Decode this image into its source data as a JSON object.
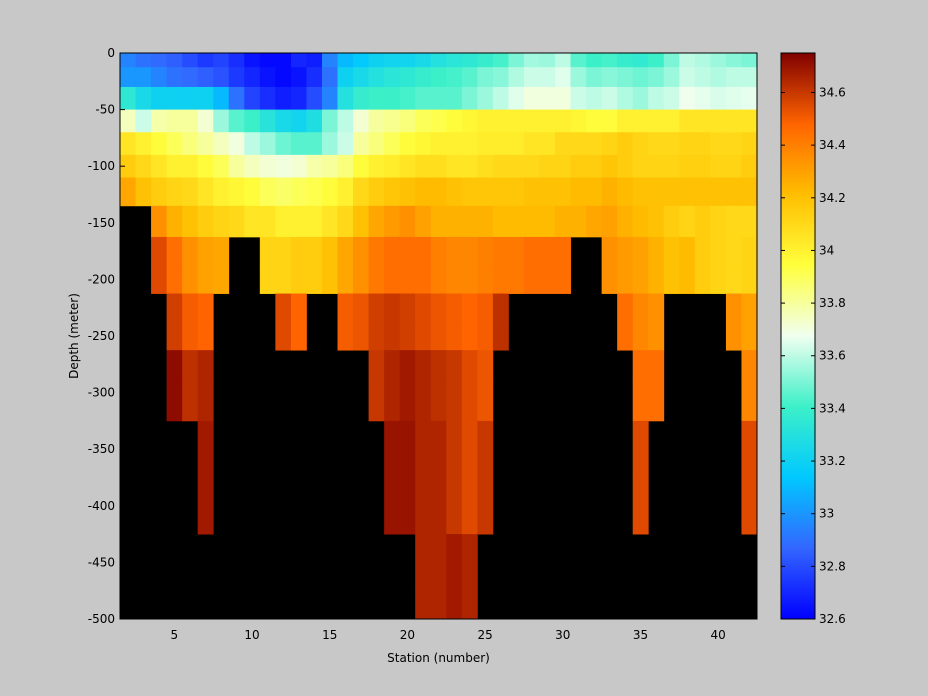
{
  "chart_data": {
    "type": "heatmap",
    "xlabel": "Station (number)",
    "ylabel": "Depth (meter)",
    "xlim": [
      1.5,
      42.5
    ],
    "ylim": [
      -500,
      0
    ],
    "x_ticks": [
      5,
      10,
      15,
      20,
      25,
      30,
      35,
      40
    ],
    "y_ticks": [
      0,
      -50,
      -100,
      -150,
      -200,
      -250,
      -300,
      -350,
      -400,
      -450,
      -500
    ],
    "colorbar": {
      "range": [
        32.6,
        34.75
      ],
      "ticks": [
        32.6,
        32.8,
        33,
        33.2,
        33.4,
        33.6,
        33.8,
        34,
        34.2,
        34.4,
        34.6
      ],
      "tick_labels": [
        "32.6",
        "32.8",
        "33",
        "33.2",
        "33.4",
        "33.6",
        "33.8",
        "34",
        "34.2",
        "34.4",
        "34.6"
      ],
      "colormap": "jet"
    },
    "no_data_color": "#000000",
    "depth_rows": [
      -5,
      -20,
      -40,
      -60,
      -80,
      -100,
      -120,
      -150,
      -175,
      -200,
      -225,
      -250,
      -275,
      -300,
      -350,
      -400,
      -450,
      -500
    ],
    "station_start": 2,
    "station_end": 42,
    "max_depth_per_station": [
      -120,
      -120,
      -300,
      -300,
      -300,
      -400,
      -200,
      -200,
      -200,
      -250,
      -250,
      -200,
      -200,
      -250,
      -250,
      -300,
      -300,
      -400,
      -400,
      -500,
      -500,
      -500,
      -400,
      -400,
      -300,
      -200,
      -200,
      -200,
      -200,
      -150,
      -200,
      -200,
      -250,
      -400,
      -300,
      -200,
      -200,
      -200,
      -200,
      -250,
      -400
    ],
    "salinity": [
      [
        32.95,
        32.9,
        32.88,
        32.85,
        32.8,
        32.75,
        32.78,
        32.72,
        32.65,
        32.62,
        32.62,
        32.7,
        32.68,
        32.95,
        33.1,
        33.15,
        33.2,
        33.22,
        33.22,
        33.25,
        33.3,
        33.33,
        33.35,
        33.38,
        33.42,
        33.5,
        33.56,
        33.55,
        33.6,
        33.45,
        33.4,
        33.42,
        33.38,
        33.36,
        33.4,
        33.5,
        33.6,
        33.58,
        33.55,
        33.52,
        33.5
      ],
      [
        33.0,
        33.0,
        32.95,
        32.9,
        32.88,
        32.85,
        32.82,
        32.75,
        32.7,
        32.65,
        32.62,
        32.65,
        32.72,
        32.9,
        33.2,
        33.25,
        33.3,
        33.33,
        33.35,
        33.38,
        33.4,
        33.42,
        33.45,
        33.5,
        33.52,
        33.58,
        33.62,
        33.62,
        33.65,
        33.55,
        33.5,
        33.52,
        33.5,
        33.48,
        33.5,
        33.55,
        33.62,
        33.6,
        33.58,
        33.6,
        33.6
      ],
      [
        33.35,
        33.25,
        33.2,
        33.2,
        33.2,
        33.2,
        33.1,
        32.9,
        32.78,
        32.72,
        32.68,
        32.7,
        32.8,
        32.95,
        33.3,
        33.38,
        33.4,
        33.4,
        33.42,
        33.45,
        33.45,
        33.45,
        33.5,
        33.55,
        33.6,
        33.65,
        33.7,
        33.7,
        33.7,
        33.62,
        33.6,
        33.62,
        33.58,
        33.55,
        33.6,
        33.62,
        33.68,
        33.66,
        33.64,
        33.65,
        33.66
      ],
      [
        33.75,
        33.62,
        33.78,
        33.8,
        33.8,
        33.72,
        33.55,
        33.45,
        33.4,
        33.32,
        33.25,
        33.22,
        33.28,
        33.5,
        33.6,
        33.72,
        33.8,
        33.82,
        33.85,
        33.9,
        33.92,
        33.95,
        33.98,
        34.0,
        34.0,
        34.0,
        34.0,
        34.0,
        34.0,
        33.98,
        33.95,
        33.95,
        34.0,
        34.0,
        34.0,
        34.0,
        34.05,
        34.05,
        34.05,
        34.05,
        34.05
      ],
      [
        34.05,
        34.0,
        33.95,
        33.9,
        33.85,
        33.8,
        33.75,
        33.7,
        33.6,
        33.55,
        33.48,
        33.45,
        33.45,
        33.55,
        33.62,
        33.8,
        33.85,
        33.9,
        33.95,
        33.98,
        34.0,
        34.0,
        34.0,
        34.02,
        34.02,
        34.02,
        34.05,
        34.05,
        34.1,
        34.1,
        34.1,
        34.12,
        34.15,
        34.12,
        34.1,
        34.1,
        34.12,
        34.12,
        34.1,
        34.1,
        34.12
      ],
      [
        34.15,
        34.1,
        34.05,
        34.0,
        34.0,
        33.95,
        33.9,
        33.8,
        33.75,
        33.72,
        33.7,
        33.72,
        33.78,
        33.8,
        33.85,
        33.95,
        34.0,
        34.02,
        34.05,
        34.08,
        34.08,
        34.05,
        34.05,
        34.08,
        34.1,
        34.1,
        34.1,
        34.12,
        34.12,
        34.15,
        34.15,
        34.18,
        34.15,
        34.12,
        34.12,
        34.12,
        34.14,
        34.14,
        34.12,
        34.12,
        34.15
      ],
      [
        34.28,
        34.2,
        34.15,
        34.12,
        34.1,
        34.05,
        34.0,
        33.98,
        33.95,
        33.9,
        33.88,
        33.9,
        33.92,
        33.95,
        34.0,
        34.1,
        34.15,
        34.18,
        34.2,
        34.22,
        34.22,
        34.2,
        34.18,
        34.18,
        34.18,
        34.18,
        34.2,
        34.2,
        34.2,
        34.22,
        34.22,
        34.25,
        34.22,
        34.2,
        34.2,
        34.2,
        34.2,
        34.2,
        34.2,
        34.2,
        34.2
      ],
      [
        null,
        null,
        34.35,
        34.25,
        34.2,
        34.15,
        34.12,
        34.1,
        34.05,
        34.05,
        34.0,
        34.0,
        34.0,
        34.05,
        34.1,
        34.2,
        34.28,
        34.32,
        34.35,
        34.3,
        34.25,
        34.25,
        34.25,
        34.25,
        34.22,
        34.22,
        34.22,
        34.22,
        34.25,
        34.25,
        34.28,
        34.3,
        34.25,
        34.22,
        34.2,
        34.15,
        34.12,
        34.15,
        34.12,
        34.1,
        34.1
      ],
      [
        null,
        null,
        34.55,
        34.45,
        34.35,
        34.3,
        34.28,
        null,
        null,
        34.12,
        34.12,
        34.15,
        34.15,
        34.2,
        34.28,
        34.35,
        34.42,
        34.45,
        34.45,
        34.45,
        34.4,
        34.38,
        34.38,
        34.4,
        34.42,
        34.42,
        34.45,
        34.45,
        34.45,
        null,
        null,
        34.35,
        34.32,
        34.3,
        34.25,
        34.2,
        34.22,
        34.15,
        34.12,
        34.1,
        34.12
      ],
      [
        null,
        null,
        34.55,
        34.45,
        34.35,
        34.3,
        34.28,
        null,
        null,
        34.12,
        34.12,
        34.15,
        34.15,
        34.2,
        34.28,
        34.35,
        34.42,
        34.45,
        34.45,
        34.45,
        34.4,
        34.38,
        34.38,
        34.4,
        34.42,
        34.42,
        34.45,
        34.45,
        34.45,
        null,
        null,
        34.35,
        34.32,
        34.3,
        34.25,
        34.2,
        34.22,
        34.15,
        34.12,
        34.1,
        34.12
      ],
      [
        null,
        null,
        null,
        34.58,
        34.5,
        34.48,
        null,
        null,
        null,
        null,
        34.55,
        34.48,
        null,
        null,
        34.5,
        34.52,
        34.58,
        34.6,
        34.58,
        34.55,
        34.52,
        34.5,
        34.48,
        34.5,
        34.62,
        null,
        null,
        null,
        null,
        null,
        null,
        null,
        34.45,
        34.38,
        34.35,
        null,
        null,
        null,
        null,
        34.35,
        34.3
      ],
      [
        null,
        null,
        null,
        34.58,
        34.5,
        34.48,
        null,
        null,
        null,
        null,
        34.55,
        34.48,
        null,
        null,
        34.5,
        34.52,
        34.58,
        34.6,
        34.58,
        34.55,
        34.52,
        34.5,
        34.48,
        34.5,
        34.62,
        null,
        null,
        null,
        null,
        null,
        null,
        null,
        34.45,
        34.38,
        34.35,
        null,
        null,
        null,
        null,
        34.35,
        34.3
      ],
      [
        null,
        null,
        null,
        34.72,
        34.62,
        34.65,
        null,
        null,
        null,
        null,
        null,
        null,
        null,
        null,
        null,
        null,
        34.6,
        34.65,
        34.68,
        34.65,
        34.62,
        34.6,
        34.55,
        34.52,
        null,
        null,
        null,
        null,
        null,
        null,
        null,
        null,
        null,
        34.45,
        34.45,
        null,
        null,
        null,
        null,
        null,
        34.38
      ],
      [
        null,
        null,
        null,
        34.72,
        34.62,
        34.65,
        null,
        null,
        null,
        null,
        null,
        null,
        null,
        null,
        null,
        null,
        34.6,
        34.65,
        34.68,
        34.65,
        34.62,
        34.6,
        34.55,
        34.52,
        null,
        null,
        null,
        null,
        null,
        null,
        null,
        null,
        null,
        34.45,
        34.45,
        null,
        null,
        null,
        null,
        null,
        34.38
      ],
      [
        null,
        null,
        null,
        null,
        null,
        34.68,
        null,
        null,
        null,
        null,
        null,
        null,
        null,
        null,
        null,
        null,
        null,
        34.7,
        34.7,
        34.65,
        34.65,
        34.6,
        34.55,
        34.6,
        null,
        null,
        null,
        null,
        null,
        null,
        null,
        null,
        null,
        34.55,
        null,
        null,
        null,
        null,
        null,
        null,
        34.55
      ],
      [
        null,
        null,
        null,
        null,
        null,
        34.68,
        null,
        null,
        null,
        null,
        null,
        null,
        null,
        null,
        null,
        null,
        null,
        34.7,
        34.7,
        34.65,
        34.65,
        34.6,
        34.55,
        34.6,
        null,
        null,
        null,
        null,
        null,
        null,
        null,
        null,
        null,
        34.55,
        null,
        null,
        null,
        null,
        null,
        null,
        34.55
      ],
      [
        null,
        null,
        null,
        null,
        null,
        null,
        null,
        null,
        null,
        null,
        null,
        null,
        null,
        null,
        null,
        null,
        null,
        null,
        null,
        34.65,
        34.65,
        34.68,
        34.65,
        null,
        null,
        null,
        null,
        null,
        null,
        null,
        null,
        null,
        null,
        null,
        null,
        null,
        null,
        null,
        null,
        null,
        null
      ],
      [
        null,
        null,
        null,
        null,
        null,
        null,
        null,
        null,
        null,
        null,
        null,
        null,
        null,
        null,
        null,
        null,
        null,
        null,
        null,
        34.65,
        34.65,
        34.68,
        34.65,
        null,
        null,
        null,
        null,
        null,
        null,
        null,
        null,
        null,
        null,
        null,
        null,
        null,
        null,
        null,
        null,
        null,
        null
      ]
    ]
  }
}
